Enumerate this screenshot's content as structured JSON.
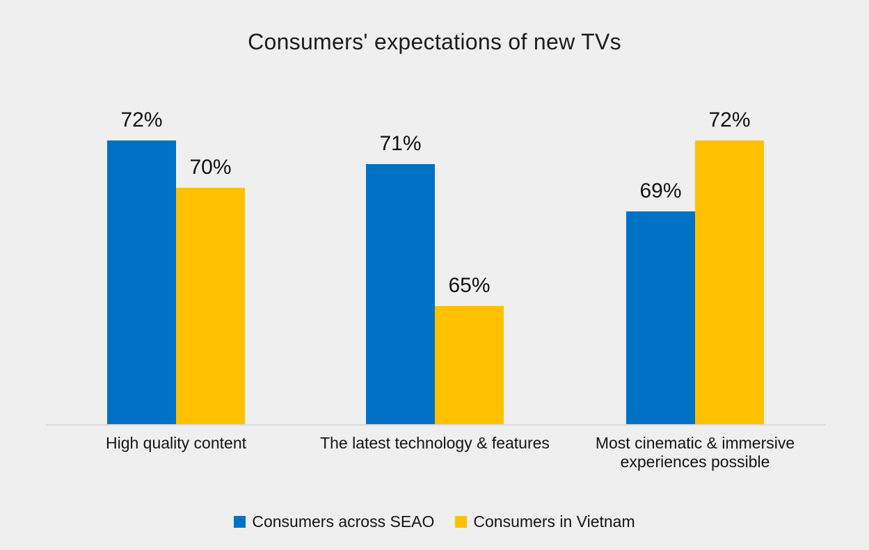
{
  "page": {
    "background": "#F0EFEF",
    "axis_line_color": "#D9D9D9"
  },
  "chart_data": {
    "type": "bar",
    "title": "Consumers' expectations of new TVs",
    "categories": [
      "High quality content",
      "The latest technology & features",
      "Most cinematic & immersive experiences possible"
    ],
    "series": [
      {
        "name": "Consumers across SEAO",
        "color": "#0072C6",
        "values": [
          72,
          71,
          69
        ]
      },
      {
        "name": "Consumers in Vietnam",
        "color": "#FFC000",
        "values": [
          70,
          65,
          72
        ]
      }
    ],
    "data_labels": [
      "72%",
      "70%",
      "71%",
      "65%",
      "69%",
      "72%"
    ],
    "value_suffix": "%",
    "xlabel": "",
    "ylabel": "",
    "ylim": [
      60,
      78
    ],
    "y_axis_visible": false,
    "grid": false,
    "legend_position": "bottom"
  }
}
